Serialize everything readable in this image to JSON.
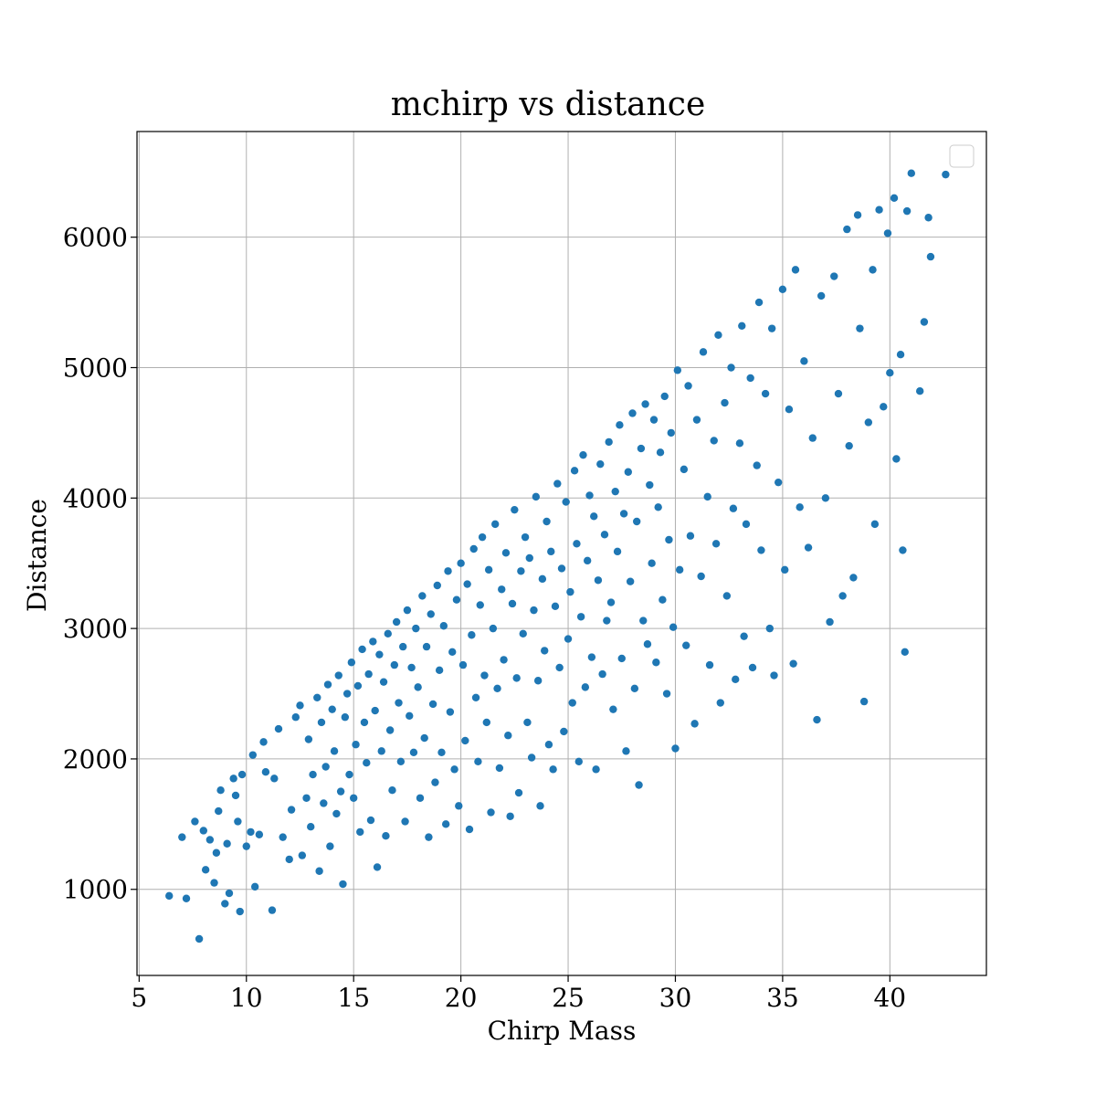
{
  "chart_data": {
    "type": "scatter",
    "title": "mchirp vs distance",
    "xlabel": "Chirp Mass",
    "ylabel": "Distance",
    "xlim": [
      4.9,
      44.5
    ],
    "ylim": [
      340,
      6810
    ],
    "xticks": [
      5,
      10,
      15,
      20,
      25,
      30,
      35,
      40
    ],
    "yticks": [
      1000,
      2000,
      3000,
      4000,
      5000,
      6000
    ],
    "grid": true,
    "legend": "top-right (empty)",
    "color": "#1f77b4",
    "series": [
      {
        "points": [
          [
            6.4,
            950
          ],
          [
            7.0,
            1400
          ],
          [
            7.2,
            930
          ],
          [
            7.6,
            1520
          ],
          [
            7.8,
            620
          ],
          [
            8.0,
            1450
          ],
          [
            8.1,
            1150
          ],
          [
            8.3,
            1380
          ],
          [
            8.5,
            1050
          ],
          [
            8.6,
            1280
          ],
          [
            8.7,
            1600
          ],
          [
            8.8,
            1760
          ],
          [
            9.0,
            890
          ],
          [
            9.1,
            1350
          ],
          [
            9.2,
            970
          ],
          [
            9.4,
            1850
          ],
          [
            9.5,
            1720
          ],
          [
            9.6,
            1520
          ],
          [
            9.7,
            830
          ],
          [
            9.8,
            1880
          ],
          [
            10.0,
            1330
          ],
          [
            10.2,
            1440
          ],
          [
            10.3,
            2030
          ],
          [
            10.4,
            1020
          ],
          [
            10.6,
            1420
          ],
          [
            10.8,
            2130
          ],
          [
            10.9,
            1900
          ],
          [
            11.2,
            840
          ],
          [
            11.3,
            1850
          ],
          [
            11.5,
            2230
          ],
          [
            11.7,
            1400
          ],
          [
            12.0,
            1230
          ],
          [
            12.1,
            1610
          ],
          [
            12.3,
            2320
          ],
          [
            12.5,
            2410
          ],
          [
            12.6,
            1260
          ],
          [
            12.8,
            1700
          ],
          [
            12.9,
            2150
          ],
          [
            13.0,
            1480
          ],
          [
            13.1,
            1880
          ],
          [
            13.3,
            2470
          ],
          [
            13.4,
            1140
          ],
          [
            13.5,
            2280
          ],
          [
            13.6,
            1660
          ],
          [
            13.7,
            1940
          ],
          [
            13.8,
            2570
          ],
          [
            13.9,
            1330
          ],
          [
            14.0,
            2380
          ],
          [
            14.1,
            2060
          ],
          [
            14.2,
            1580
          ],
          [
            14.3,
            2640
          ],
          [
            14.4,
            1750
          ],
          [
            14.5,
            1040
          ],
          [
            14.6,
            2320
          ],
          [
            14.7,
            2500
          ],
          [
            14.8,
            1880
          ],
          [
            14.9,
            2740
          ],
          [
            15.0,
            1700
          ],
          [
            15.1,
            2110
          ],
          [
            15.2,
            2560
          ],
          [
            15.3,
            1440
          ],
          [
            15.4,
            2840
          ],
          [
            15.5,
            2280
          ],
          [
            15.6,
            1970
          ],
          [
            15.7,
            2650
          ],
          [
            15.8,
            1530
          ],
          [
            15.9,
            2900
          ],
          [
            16.0,
            2370
          ],
          [
            16.1,
            1170
          ],
          [
            16.2,
            2800
          ],
          [
            16.3,
            2060
          ],
          [
            16.4,
            2590
          ],
          [
            16.5,
            1410
          ],
          [
            16.6,
            2960
          ],
          [
            16.7,
            2220
          ],
          [
            16.8,
            1760
          ],
          [
            16.9,
            2720
          ],
          [
            17.0,
            3050
          ],
          [
            17.1,
            2430
          ],
          [
            17.2,
            1980
          ],
          [
            17.3,
            2860
          ],
          [
            17.4,
            1520
          ],
          [
            17.5,
            3140
          ],
          [
            17.6,
            2330
          ],
          [
            17.7,
            2700
          ],
          [
            17.8,
            2050
          ],
          [
            17.9,
            3000
          ],
          [
            18.0,
            2550
          ],
          [
            18.1,
            1700
          ],
          [
            18.2,
            3250
          ],
          [
            18.3,
            2160
          ],
          [
            18.4,
            2860
          ],
          [
            18.5,
            1400
          ],
          [
            18.6,
            3110
          ],
          [
            18.7,
            2420
          ],
          [
            18.8,
            1820
          ],
          [
            18.9,
            3330
          ],
          [
            19.0,
            2680
          ],
          [
            19.1,
            2050
          ],
          [
            19.2,
            3020
          ],
          [
            19.3,
            1500
          ],
          [
            19.4,
            3440
          ],
          [
            19.5,
            2360
          ],
          [
            19.6,
            2820
          ],
          [
            19.7,
            1920
          ],
          [
            19.8,
            3220
          ],
          [
            19.9,
            1640
          ],
          [
            20.0,
            3500
          ],
          [
            20.1,
            2720
          ],
          [
            20.2,
            2140
          ],
          [
            20.3,
            3340
          ],
          [
            20.4,
            1460
          ],
          [
            20.5,
            2950
          ],
          [
            20.6,
            3610
          ],
          [
            20.7,
            2470
          ],
          [
            20.8,
            1980
          ],
          [
            20.9,
            3180
          ],
          [
            21.0,
            3700
          ],
          [
            21.1,
            2640
          ],
          [
            21.2,
            2280
          ],
          [
            21.3,
            3450
          ],
          [
            21.4,
            1590
          ],
          [
            21.5,
            3000
          ],
          [
            21.6,
            3800
          ],
          [
            21.7,
            2540
          ],
          [
            21.8,
            1930
          ],
          [
            21.9,
            3300
          ],
          [
            22.0,
            2760
          ],
          [
            22.1,
            3580
          ],
          [
            22.2,
            2180
          ],
          [
            22.3,
            1560
          ],
          [
            22.4,
            3190
          ],
          [
            22.5,
            3910
          ],
          [
            22.6,
            2620
          ],
          [
            22.7,
            1740
          ],
          [
            22.8,
            3440
          ],
          [
            22.9,
            2960
          ],
          [
            23.0,
            3700
          ],
          [
            23.1,
            2280
          ],
          [
            23.2,
            3540
          ],
          [
            23.3,
            2010
          ],
          [
            23.4,
            3140
          ],
          [
            23.5,
            4010
          ],
          [
            23.6,
            2600
          ],
          [
            23.7,
            1640
          ],
          [
            23.8,
            3380
          ],
          [
            23.9,
            2830
          ],
          [
            24.0,
            3820
          ],
          [
            24.1,
            2110
          ],
          [
            24.2,
            3590
          ],
          [
            24.3,
            1920
          ],
          [
            24.4,
            3170
          ],
          [
            24.5,
            4110
          ],
          [
            24.6,
            2700
          ],
          [
            24.7,
            3460
          ],
          [
            24.8,
            2210
          ],
          [
            24.9,
            3970
          ],
          [
            25.0,
            2920
          ],
          [
            25.1,
            3280
          ],
          [
            25.2,
            2430
          ],
          [
            25.3,
            4210
          ],
          [
            25.4,
            3650
          ],
          [
            25.5,
            1980
          ],
          [
            25.6,
            3090
          ],
          [
            25.7,
            4330
          ],
          [
            25.8,
            2550
          ],
          [
            25.9,
            3520
          ],
          [
            26.0,
            4020
          ],
          [
            26.1,
            2780
          ],
          [
            26.2,
            3860
          ],
          [
            26.3,
            1920
          ],
          [
            26.4,
            3370
          ],
          [
            26.5,
            4260
          ],
          [
            26.6,
            2650
          ],
          [
            26.7,
            3720
          ],
          [
            26.8,
            3060
          ],
          [
            26.9,
            4430
          ],
          [
            27.0,
            3200
          ],
          [
            27.1,
            2380
          ],
          [
            27.2,
            4050
          ],
          [
            27.3,
            3590
          ],
          [
            27.4,
            4560
          ],
          [
            27.5,
            2770
          ],
          [
            27.6,
            3880
          ],
          [
            27.7,
            2060
          ],
          [
            27.8,
            4200
          ],
          [
            27.9,
            3360
          ],
          [
            28.0,
            4650
          ],
          [
            28.1,
            2540
          ],
          [
            28.2,
            3820
          ],
          [
            28.3,
            1800
          ],
          [
            28.4,
            4380
          ],
          [
            28.5,
            3060
          ],
          [
            28.6,
            4720
          ],
          [
            28.7,
            2880
          ],
          [
            28.8,
            4100
          ],
          [
            28.9,
            3500
          ],
          [
            29.0,
            4600
          ],
          [
            29.1,
            2740
          ],
          [
            29.2,
            3930
          ],
          [
            29.3,
            4350
          ],
          [
            29.4,
            3220
          ],
          [
            29.5,
            4780
          ],
          [
            29.6,
            2500
          ],
          [
            29.7,
            3680
          ],
          [
            29.8,
            4500
          ],
          [
            29.9,
            3010
          ],
          [
            30.0,
            2080
          ],
          [
            30.1,
            4980
          ],
          [
            30.2,
            3450
          ],
          [
            30.4,
            4220
          ],
          [
            30.5,
            2870
          ],
          [
            30.6,
            4860
          ],
          [
            30.7,
            3710
          ],
          [
            30.9,
            2270
          ],
          [
            31.0,
            4600
          ],
          [
            31.2,
            3400
          ],
          [
            31.3,
            5120
          ],
          [
            31.5,
            4010
          ],
          [
            31.6,
            2720
          ],
          [
            31.8,
            4440
          ],
          [
            31.9,
            3650
          ],
          [
            32.0,
            5250
          ],
          [
            32.1,
            2430
          ],
          [
            32.3,
            4730
          ],
          [
            32.4,
            3250
          ],
          [
            32.6,
            5000
          ],
          [
            32.7,
            3920
          ],
          [
            32.8,
            2610
          ],
          [
            33.0,
            4420
          ],
          [
            33.1,
            5320
          ],
          [
            33.2,
            2940
          ],
          [
            33.3,
            3800
          ],
          [
            33.5,
            4920
          ],
          [
            33.6,
            2700
          ],
          [
            33.8,
            4250
          ],
          [
            33.9,
            5500
          ],
          [
            34.0,
            3600
          ],
          [
            34.2,
            4800
          ],
          [
            34.4,
            3000
          ],
          [
            34.5,
            5300
          ],
          [
            34.6,
            2640
          ],
          [
            34.8,
            4120
          ],
          [
            35.0,
            5600
          ],
          [
            35.1,
            3450
          ],
          [
            35.3,
            4680
          ],
          [
            35.5,
            2730
          ],
          [
            35.6,
            5750
          ],
          [
            35.8,
            3930
          ],
          [
            36.0,
            5050
          ],
          [
            36.2,
            3620
          ],
          [
            36.4,
            4460
          ],
          [
            36.6,
            2300
          ],
          [
            36.8,
            5550
          ],
          [
            37.0,
            4000
          ],
          [
            37.2,
            3050
          ],
          [
            37.4,
            5700
          ],
          [
            37.6,
            4800
          ],
          [
            37.8,
            3250
          ],
          [
            38.0,
            6060
          ],
          [
            38.1,
            4400
          ],
          [
            38.3,
            3390
          ],
          [
            38.5,
            6170
          ],
          [
            38.6,
            5300
          ],
          [
            38.8,
            2440
          ],
          [
            39.0,
            4580
          ],
          [
            39.2,
            5750
          ],
          [
            39.3,
            3800
          ],
          [
            39.5,
            6210
          ],
          [
            39.7,
            4700
          ],
          [
            39.9,
            6030
          ],
          [
            40.0,
            4960
          ],
          [
            40.2,
            6300
          ],
          [
            40.3,
            4300
          ],
          [
            40.5,
            5100
          ],
          [
            40.6,
            3600
          ],
          [
            40.7,
            2820
          ],
          [
            40.8,
            6200
          ],
          [
            41.0,
            6490
          ],
          [
            41.4,
            4820
          ],
          [
            41.6,
            5350
          ],
          [
            41.8,
            6150
          ],
          [
            41.9,
            5850
          ],
          [
            42.6,
            6480
          ]
        ]
      }
    ]
  }
}
